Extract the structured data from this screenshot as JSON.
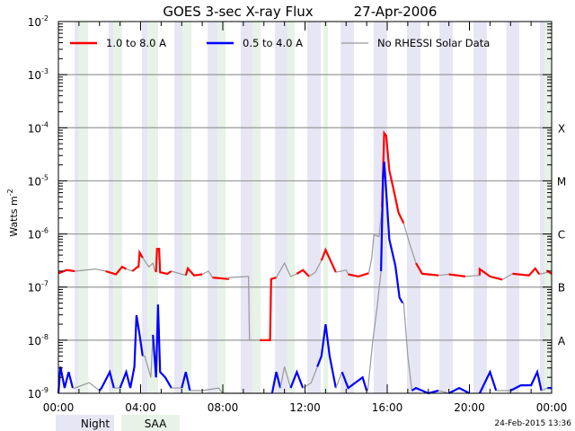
{
  "chart_data": {
    "type": "line",
    "title": "GOES 3-sec X-ray Flux",
    "date": "27-Apr-2006",
    "ylabel": "Watts m",
    "ylabel_sup": "-2",
    "yscale": "log",
    "ylim_log10": [
      -9,
      -2
    ],
    "y_ticks": [
      {
        "base": "10",
        "exp": "-2",
        "log": -2
      },
      {
        "base": "10",
        "exp": "-3",
        "log": -3
      },
      {
        "base": "10",
        "exp": "-4",
        "log": -4
      },
      {
        "base": "10",
        "exp": "-5",
        "log": -5
      },
      {
        "base": "10",
        "exp": "-6",
        "log": -6
      },
      {
        "base": "10",
        "exp": "-7",
        "log": -7
      },
      {
        "base": "10",
        "exp": "-8",
        "log": -8
      },
      {
        "base": "10",
        "exp": "-9",
        "log": -9
      }
    ],
    "flare_classes": [
      {
        "label": "X",
        "log": -4
      },
      {
        "label": "M",
        "log": -5
      },
      {
        "label": "C",
        "log": -6
      },
      {
        "label": "B",
        "log": -7
      },
      {
        "label": "A",
        "log": -8
      }
    ],
    "xlim_hours": [
      0,
      24
    ],
    "x_ticks": [
      {
        "label": "00:00",
        "h": 0
      },
      {
        "label": "04:00",
        "h": 4
      },
      {
        "label": "08:00",
        "h": 8
      },
      {
        "label": "12:00",
        "h": 12
      },
      {
        "label": "16:00",
        "h": 16
      },
      {
        "label": "20:00",
        "h": 20
      },
      {
        "label": "00:00",
        "h": 24
      }
    ],
    "grid": true,
    "legend_placement": "top-left",
    "legend": [
      {
        "label": "1.0 to 8.0 A",
        "color": "#ff0000"
      },
      {
        "label": "0.5 to 4.0 A",
        "color": "#0000ff"
      },
      {
        "label": "No RHESSI Solar Data",
        "color": "#999999"
      }
    ],
    "night_intervals_hours": [
      [
        0.79,
        0.96
      ],
      [
        2.45,
        2.67
      ],
      [
        4.06,
        4.33
      ],
      [
        5.64,
        6.03
      ],
      [
        7.26,
        7.74
      ],
      [
        8.87,
        9.44
      ],
      [
        10.54,
        11.15
      ],
      [
        12.11,
        12.77
      ],
      [
        13.73,
        14.38
      ],
      [
        15.34,
        16.0
      ],
      [
        16.96,
        17.62
      ],
      [
        18.54,
        19.19
      ],
      [
        20.2,
        20.85
      ],
      [
        21.8,
        22.43
      ],
      [
        23.43,
        23.65
      ]
    ],
    "saa_intervals_hours": [
      [
        0.96,
        1.44
      ],
      [
        2.67,
        3.1
      ],
      [
        4.33,
        4.85
      ],
      [
        6.03,
        6.47
      ],
      [
        7.74,
        8.13
      ],
      [
        9.44,
        9.84
      ],
      [
        11.15,
        11.5
      ],
      [
        12.9,
        13.12
      ],
      [
        23.65,
        24
      ]
    ],
    "series_note_flag": "third value 1 = RHESSI data available (colored), 0 = no RHESSI data (gray)",
    "series": [
      {
        "name": "1.0 to 8.0 A",
        "color": "#ff0000",
        "points": [
          [
            0,
            -6.74,
            1
          ],
          [
            0.4,
            -6.68,
            1
          ],
          [
            0.8,
            -6.7,
            1
          ],
          [
            0.8,
            -6.7,
            0
          ],
          [
            1.8,
            -6.66,
            0
          ],
          [
            2.3,
            -6.7,
            0
          ],
          [
            2.3,
            -6.7,
            1
          ],
          [
            2.8,
            -6.76,
            1
          ],
          [
            3.1,
            -6.62,
            1
          ],
          [
            3.3,
            -6.66,
            1
          ],
          [
            3.3,
            -6.66,
            0
          ],
          [
            3.6,
            -6.7,
            0
          ],
          [
            3.6,
            -6.7,
            1
          ],
          [
            3.85,
            -6.62,
            1
          ],
          [
            3.9,
            -6.62,
            1
          ],
          [
            3.95,
            -6.35,
            1
          ],
          [
            4.1,
            -6.45,
            1
          ],
          [
            4.1,
            -6.45,
            0
          ],
          [
            4.4,
            -6.62,
            0
          ],
          [
            4.6,
            -6.55,
            0
          ],
          [
            4.7,
            -6.7,
            0
          ],
          [
            4.75,
            -6.7,
            1
          ],
          [
            4.8,
            -6.28,
            1
          ],
          [
            4.9,
            -6.28,
            1
          ],
          [
            4.95,
            -6.72,
            1
          ],
          [
            5.3,
            -6.75,
            1
          ],
          [
            5.5,
            -6.7,
            1
          ],
          [
            5.5,
            -6.7,
            0
          ],
          [
            6.2,
            -6.78,
            0
          ],
          [
            6.2,
            -6.78,
            1
          ],
          [
            6.3,
            -6.65,
            1
          ],
          [
            6.6,
            -6.78,
            1
          ],
          [
            7.0,
            -6.76,
            1
          ],
          [
            7.0,
            -6.76,
            0
          ],
          [
            7.3,
            -6.7,
            0
          ],
          [
            7.5,
            -6.82,
            0
          ],
          [
            7.5,
            -6.82,
            1
          ],
          [
            8.3,
            -6.85,
            1
          ],
          [
            8.3,
            -6.82,
            0
          ],
          [
            9.25,
            -6.8,
            0
          ],
          [
            9.3,
            -8.0,
            0
          ],
          [
            9.8,
            -8.0,
            0
          ],
          [
            9.8,
            -8.0,
            1
          ],
          [
            10.3,
            -8.0,
            1
          ],
          [
            10.35,
            -6.85,
            1
          ],
          [
            10.6,
            -6.82,
            1
          ],
          [
            10.6,
            -6.82,
            0
          ],
          [
            11.0,
            -6.55,
            0
          ],
          [
            11.3,
            -6.8,
            0
          ],
          [
            11.6,
            -6.75,
            0
          ],
          [
            11.6,
            -6.75,
            1
          ],
          [
            11.9,
            -6.68,
            1
          ],
          [
            12.2,
            -6.8,
            1
          ],
          [
            12.2,
            -6.8,
            0
          ],
          [
            12.5,
            -6.72,
            0
          ],
          [
            12.8,
            -6.5,
            0
          ],
          [
            12.8,
            -6.5,
            1
          ],
          [
            13.0,
            -6.3,
            1
          ],
          [
            13.3,
            -6.55,
            1
          ],
          [
            13.5,
            -6.72,
            1
          ],
          [
            13.5,
            -6.72,
            0
          ],
          [
            14.0,
            -6.68,
            0
          ],
          [
            14.1,
            -6.76,
            0
          ],
          [
            14.1,
            -6.76,
            1
          ],
          [
            14.6,
            -6.8,
            1
          ],
          [
            15.1,
            -6.74,
            1
          ],
          [
            15.1,
            -6.74,
            0
          ],
          [
            15.25,
            -6.45,
            0
          ],
          [
            15.35,
            -6.02,
            0
          ],
          [
            15.6,
            -6.05,
            0
          ],
          [
            15.75,
            -5.5,
            0
          ],
          [
            15.75,
            -5.5,
            1
          ],
          [
            15.85,
            -4.1,
            1
          ],
          [
            15.95,
            -4.15,
            1
          ],
          [
            16.1,
            -4.8,
            1
          ],
          [
            16.3,
            -5.15,
            1
          ],
          [
            16.55,
            -5.6,
            1
          ],
          [
            16.8,
            -5.8,
            1
          ],
          [
            16.8,
            -5.8,
            0
          ],
          [
            17.1,
            -6.2,
            0
          ],
          [
            17.4,
            -6.55,
            0
          ],
          [
            17.4,
            -6.55,
            1
          ],
          [
            17.7,
            -6.75,
            1
          ],
          [
            18.5,
            -6.78,
            1
          ],
          [
            18.5,
            -6.78,
            0
          ],
          [
            19.0,
            -6.76,
            0
          ],
          [
            19.0,
            -6.76,
            1
          ],
          [
            19.8,
            -6.8,
            1
          ],
          [
            19.8,
            -6.8,
            0
          ],
          [
            20.5,
            -6.78,
            0
          ],
          [
            20.5,
            -6.66,
            1
          ],
          [
            21.0,
            -6.8,
            1
          ],
          [
            21.6,
            -6.86,
            1
          ],
          [
            21.6,
            -6.86,
            0
          ],
          [
            22.1,
            -6.75,
            0
          ],
          [
            22.1,
            -6.75,
            1
          ],
          [
            22.9,
            -6.78,
            1
          ],
          [
            23.2,
            -6.65,
            1
          ],
          [
            23.4,
            -6.76,
            1
          ],
          [
            23.4,
            -6.76,
            0
          ],
          [
            23.8,
            -6.72,
            0
          ],
          [
            23.8,
            -6.7,
            1
          ],
          [
            24,
            -6.75,
            1
          ]
        ]
      },
      {
        "name": "0.5 to 4.0 A",
        "color": "#0000ff",
        "points": [
          [
            0,
            -9.0,
            1
          ],
          [
            0.1,
            -8.5,
            1
          ],
          [
            0.3,
            -8.9,
            1
          ],
          [
            0.5,
            -8.6,
            1
          ],
          [
            0.7,
            -8.9,
            1
          ],
          [
            0.8,
            -8.9,
            0
          ],
          [
            1.5,
            -8.8,
            0
          ],
          [
            2.0,
            -8.95,
            0
          ],
          [
            2.1,
            -8.9,
            1
          ],
          [
            2.5,
            -8.6,
            1
          ],
          [
            2.7,
            -8.9,
            1
          ],
          [
            3.0,
            -8.9,
            0
          ],
          [
            3.3,
            -8.6,
            1
          ],
          [
            3.5,
            -8.9,
            1
          ],
          [
            3.7,
            -8.5,
            1
          ],
          [
            3.8,
            -7.53,
            1
          ],
          [
            3.95,
            -7.9,
            1
          ],
          [
            4.1,
            -8.3,
            1
          ],
          [
            4.2,
            -8.3,
            0
          ],
          [
            4.5,
            -8.7,
            0
          ],
          [
            4.6,
            -7.9,
            0
          ],
          [
            4.75,
            -8.7,
            1
          ],
          [
            4.85,
            -7.33,
            1
          ],
          [
            4.95,
            -8.6,
            1
          ],
          [
            5.2,
            -8.7,
            1
          ],
          [
            5.5,
            -8.9,
            1
          ],
          [
            5.6,
            -8.9,
            0
          ],
          [
            6.0,
            -8.9,
            0
          ],
          [
            6.2,
            -8.6,
            1
          ],
          [
            6.4,
            -8.95,
            1
          ],
          [
            7.0,
            -8.95,
            0
          ],
          [
            7.8,
            -8.9,
            0
          ],
          [
            8.0,
            -9,
            0
          ],
          [
            9.0,
            -9.0,
            0
          ],
          [
            10.4,
            -9.0,
            0
          ],
          [
            10.6,
            -8.6,
            1
          ],
          [
            10.8,
            -8.9,
            1
          ],
          [
            11.0,
            -8.5,
            0
          ],
          [
            11.3,
            -8.9,
            0
          ],
          [
            11.6,
            -8.6,
            1
          ],
          [
            11.9,
            -8.9,
            1
          ],
          [
            12.3,
            -8.8,
            0
          ],
          [
            12.6,
            -8.5,
            0
          ],
          [
            12.8,
            -8.3,
            1
          ],
          [
            13.0,
            -7.7,
            1
          ],
          [
            13.2,
            -8.3,
            1
          ],
          [
            13.5,
            -8.9,
            1
          ],
          [
            13.8,
            -8.6,
            0
          ],
          [
            14.1,
            -8.9,
            1
          ],
          [
            14.8,
            -8.7,
            1
          ],
          [
            15.0,
            -8.95,
            1
          ],
          [
            15.05,
            -8.95,
            0
          ],
          [
            15.3,
            -8.0,
            0
          ],
          [
            15.5,
            -7.4,
            0
          ],
          [
            15.7,
            -6.7,
            0
          ],
          [
            15.8,
            -4.9,
            1
          ],
          [
            15.85,
            -4.64,
            1
          ],
          [
            15.95,
            -5.2,
            1
          ],
          [
            16.1,
            -6.1,
            1
          ],
          [
            16.4,
            -6.6,
            1
          ],
          [
            16.6,
            -7.2,
            1
          ],
          [
            16.75,
            -7.3,
            1
          ],
          [
            16.8,
            -7.3,
            0
          ],
          [
            17.0,
            -8.3,
            0
          ],
          [
            17.2,
            -8.95,
            0
          ],
          [
            17.4,
            -8.9,
            1
          ],
          [
            18.0,
            -9,
            1
          ],
          [
            18.5,
            -8.95,
            1
          ],
          [
            19.0,
            -9.0,
            0
          ],
          [
            19.5,
            -8.9,
            1
          ],
          [
            20.0,
            -9.0,
            1
          ],
          [
            20.5,
            -9.0,
            0
          ],
          [
            21.0,
            -8.6,
            1
          ],
          [
            21.3,
            -8.95,
            1
          ],
          [
            22.0,
            -8.95,
            0
          ],
          [
            22.5,
            -8.85,
            1
          ],
          [
            23.0,
            -8.85,
            1
          ],
          [
            23.3,
            -8.6,
            1
          ],
          [
            23.5,
            -8.95,
            1
          ],
          [
            23.8,
            -8.9,
            0
          ],
          [
            24,
            -8.9,
            1
          ]
        ]
      }
    ],
    "bands_legend": [
      {
        "label": "Night",
        "color": "#e6e6f5"
      },
      {
        "label": "SAA",
        "color": "#e6f3e6"
      }
    ],
    "no_data_color": "#999999",
    "timestamp": "24-Feb-2015 13:36"
  }
}
